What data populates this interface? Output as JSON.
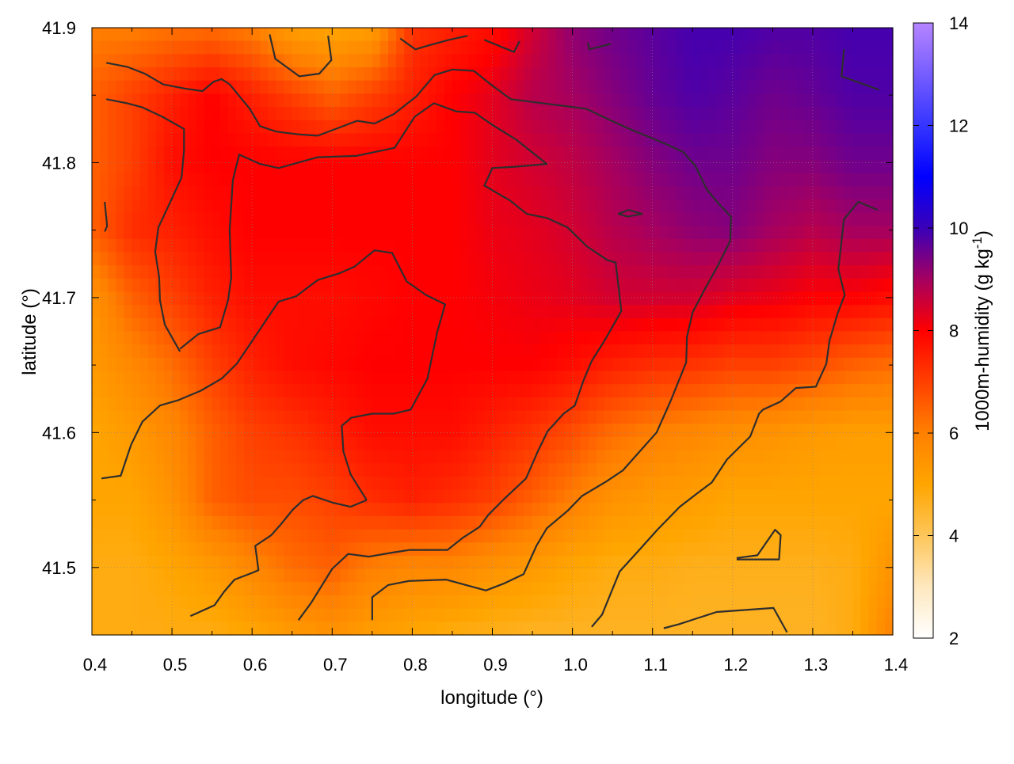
{
  "chart_data": {
    "type": "heatmap",
    "xlabel": "longitude (°)",
    "ylabel": "latitude (°)",
    "xlim": [
      0.4,
      1.4
    ],
    "ylim": [
      41.45,
      41.9
    ],
    "xticks": [
      "0.4",
      "0.5",
      "0.6",
      "0.7",
      "0.8",
      "0.9",
      "1.0",
      "1.1",
      "1.2",
      "1.3",
      "1.4"
    ],
    "yticks": [
      "41.5",
      "41.6",
      "41.7",
      "41.8",
      "41.9"
    ],
    "grid": true,
    "colorbar": {
      "label_main": "1000m-humidity (g kg",
      "label_sup": "-1",
      "label_end": ")",
      "range": [
        2,
        14
      ],
      "ticks": [
        "2",
        "4",
        "6",
        "8",
        "10",
        "12",
        "14"
      ],
      "palette": [
        {
          "v": 2,
          "c": "#ffffff"
        },
        {
          "v": 3,
          "c": "#fee8bf"
        },
        {
          "v": 4,
          "c": "#fdc65a"
        },
        {
          "v": 5,
          "c": "#ffa500"
        },
        {
          "v": 6,
          "c": "#ff8000"
        },
        {
          "v": 7,
          "c": "#ff4000"
        },
        {
          "v": 8,
          "c": "#ff0000"
        },
        {
          "v": 9,
          "c": "#a50060"
        },
        {
          "v": 10,
          "c": "#3a00b8"
        },
        {
          "v": 11,
          "c": "#0000ff"
        },
        {
          "v": 12,
          "c": "#3535ff"
        },
        {
          "v": 14,
          "c": "#b685ff"
        }
      ]
    },
    "grid_lon": [
      0.4,
      0.45,
      0.5,
      0.55,
      0.6,
      0.65,
      0.7,
      0.75,
      0.8,
      0.85,
      0.9,
      0.95,
      1.0,
      1.05,
      1.1,
      1.15,
      1.2,
      1.25,
      1.3,
      1.35,
      1.4
    ],
    "grid_lat": [
      41.9,
      41.85,
      41.8,
      41.75,
      41.7,
      41.65,
      41.6,
      41.55,
      41.5,
      41.45
    ],
    "values": [
      [
        6.0,
        6.0,
        6.2,
        6.3,
        6.0,
        5.2,
        5.0,
        5.2,
        7.2,
        7.5,
        7.8,
        8.5,
        9.2,
        9.5,
        9.7,
        9.9,
        9.9,
        9.8,
        9.8,
        9.9,
        9.9
      ],
      [
        6.5,
        7.0,
        7.5,
        8.0,
        7.5,
        7.0,
        6.5,
        7.0,
        7.5,
        8.0,
        8.3,
        8.8,
        9.0,
        9.3,
        9.6,
        9.8,
        9.7,
        9.5,
        9.6,
        9.8,
        9.8
      ],
      [
        6.5,
        7.0,
        7.8,
        8.0,
        8.0,
        8.0,
        8.0,
        8.0,
        8.0,
        8.0,
        8.3,
        8.5,
        8.7,
        9.0,
        9.3,
        9.5,
        9.5,
        9.3,
        9.3,
        9.5,
        9.5
      ],
      [
        6.5,
        7.3,
        7.5,
        7.8,
        8.0,
        8.0,
        8.0,
        8.0,
        8.0,
        8.0,
        8.2,
        8.3,
        8.5,
        8.8,
        9.0,
        9.2,
        9.3,
        9.0,
        8.8,
        9.0,
        9.0
      ],
      [
        5.5,
        6.5,
        7.0,
        7.5,
        7.8,
        7.8,
        7.8,
        7.9,
        8.0,
        8.0,
        8.1,
        8.2,
        8.3,
        8.5,
        8.5,
        8.5,
        8.3,
        8.2,
        8.0,
        8.0,
        7.8
      ],
      [
        5.3,
        5.8,
        6.3,
        7.0,
        7.5,
        7.8,
        7.9,
        8.0,
        8.0,
        8.0,
        8.0,
        8.0,
        7.8,
        7.5,
        7.3,
        7.2,
        7.0,
        7.0,
        6.8,
        6.5,
        6.3
      ],
      [
        5.0,
        5.3,
        5.8,
        6.5,
        7.0,
        7.2,
        7.5,
        7.8,
        7.8,
        7.8,
        7.5,
        7.2,
        6.8,
        6.3,
        6.0,
        5.8,
        5.6,
        5.5,
        5.3,
        5.2,
        5.2
      ],
      [
        5.0,
        5.0,
        5.5,
        6.5,
        6.8,
        6.8,
        7.0,
        7.3,
        7.5,
        7.3,
        7.0,
        6.5,
        6.0,
        5.5,
        5.3,
        5.2,
        5.0,
        5.0,
        5.0,
        5.0,
        5.0
      ],
      [
        4.8,
        4.8,
        5.0,
        5.3,
        5.8,
        6.3,
        6.5,
        6.0,
        5.8,
        5.8,
        5.5,
        5.3,
        5.0,
        4.8,
        4.8,
        4.7,
        4.7,
        4.7,
        4.7,
        4.8,
        5.5
      ],
      [
        4.8,
        4.8,
        4.8,
        4.8,
        5.0,
        5.3,
        5.5,
        5.2,
        5.0,
        4.8,
        4.7,
        4.6,
        4.6,
        4.6,
        4.6,
        4.6,
        4.6,
        4.6,
        4.6,
        4.8,
        6.0
      ]
    ],
    "contours": [
      [
        [
          0.743,
          41.55
        ],
        [
          0.723,
          41.569
        ],
        [
          0.714,
          41.586
        ],
        [
          0.712,
          41.605
        ],
        [
          0.724,
          41.611
        ],
        [
          0.75,
          41.614
        ],
        [
          0.777,
          41.614
        ],
        [
          0.798,
          41.617
        ],
        [
          0.819,
          41.64
        ],
        [
          0.831,
          41.674
        ],
        [
          0.841,
          41.695
        ],
        [
          0.817,
          41.702
        ],
        [
          0.793,
          41.712
        ],
        [
          0.775,
          41.733
        ],
        [
          0.753,
          41.735
        ],
        [
          0.728,
          41.723
        ],
        [
          0.709,
          41.718
        ],
        [
          0.682,
          41.713
        ],
        [
          0.655,
          41.701
        ],
        [
          0.633,
          41.697
        ],
        [
          0.607,
          41.674
        ],
        [
          0.581,
          41.651
        ],
        [
          0.562,
          41.64
        ],
        [
          0.536,
          41.631
        ],
        [
          0.508,
          41.624
        ],
        [
          0.485,
          41.62
        ],
        [
          0.463,
          41.608
        ],
        [
          0.449,
          41.591
        ],
        [
          0.436,
          41.568
        ],
        [
          0.412,
          41.566
        ]
      ],
      [
        [
          0.743,
          41.55
        ],
        [
          0.723,
          41.545
        ],
        [
          0.701,
          41.548
        ],
        [
          0.676,
          41.553
        ],
        [
          0.664,
          41.55
        ],
        [
          0.651,
          41.543
        ],
        [
          0.636,
          41.532
        ],
        [
          0.624,
          41.524
        ],
        [
          0.604,
          41.516
        ],
        [
          0.608,
          41.498
        ],
        [
          0.6,
          41.496
        ],
        [
          0.578,
          41.491
        ],
        [
          0.565,
          41.482
        ],
        [
          0.553,
          41.472
        ],
        [
          0.523,
          41.464
        ]
      ],
      [
        [
          0.51,
          41.662
        ],
        [
          0.533,
          41.673
        ],
        [
          0.56,
          41.678
        ],
        [
          0.57,
          41.698
        ],
        [
          0.574,
          41.715
        ],
        [
          0.572,
          41.75
        ],
        [
          0.576,
          41.787
        ],
        [
          0.584,
          41.806
        ],
        [
          0.61,
          41.799
        ],
        [
          0.633,
          41.796
        ],
        [
          0.682,
          41.804
        ],
        [
          0.73,
          41.805
        ],
        [
          0.778,
          41.811
        ],
        [
          0.803,
          41.834
        ],
        [
          0.827,
          41.844
        ],
        [
          0.855,
          41.838
        ],
        [
          0.878,
          41.837
        ],
        [
          0.9,
          41.828
        ],
        [
          0.93,
          41.817
        ],
        [
          0.968,
          41.799
        ],
        [
          0.928,
          41.797
        ],
        [
          0.9,
          41.796
        ],
        [
          0.89,
          41.783
        ],
        [
          0.922,
          41.772
        ],
        [
          0.943,
          41.762
        ],
        [
          0.968,
          41.759
        ],
        [
          0.994,
          41.752
        ],
        [
          1.018,
          41.738
        ],
        [
          1.043,
          41.728
        ],
        [
          1.054,
          41.726
        ],
        [
          1.061,
          41.69
        ],
        [
          1.04,
          41.668
        ],
        [
          1.024,
          41.653
        ],
        [
          1.014,
          41.639
        ],
        [
          1.003,
          41.62
        ],
        [
          0.989,
          41.614
        ],
        [
          0.969,
          41.601
        ],
        [
          0.956,
          41.585
        ],
        [
          0.942,
          41.566
        ],
        [
          0.915,
          41.551
        ],
        [
          0.895,
          41.539
        ],
        [
          0.884,
          41.53
        ],
        [
          0.863,
          41.522
        ],
        [
          0.844,
          41.513
        ],
        [
          0.797,
          41.513
        ],
        [
          0.775,
          41.511
        ],
        [
          0.746,
          41.508
        ],
        [
          0.72,
          41.51
        ],
        [
          0.7,
          41.499
        ],
        [
          0.674,
          41.474
        ],
        [
          0.658,
          41.461
        ]
      ],
      [
        [
          0.418,
          41.847
        ],
        [
          0.444,
          41.844
        ],
        [
          0.463,
          41.841
        ],
        [
          0.488,
          41.834
        ],
        [
          0.515,
          41.825
        ],
        [
          0.515,
          41.809
        ],
        [
          0.512,
          41.789
        ],
        [
          0.498,
          41.771
        ],
        [
          0.483,
          41.752
        ],
        [
          0.479,
          41.734
        ],
        [
          0.484,
          41.715
        ],
        [
          0.485,
          41.698
        ],
        [
          0.491,
          41.68
        ],
        [
          0.51,
          41.66
        ]
      ],
      [
        [
          0.418,
          41.874
        ],
        [
          0.444,
          41.871
        ],
        [
          0.466,
          41.866
        ],
        [
          0.489,
          41.858
        ],
        [
          0.515,
          41.855
        ],
        [
          0.538,
          41.853
        ],
        [
          0.552,
          41.86
        ],
        [
          0.562,
          41.862
        ],
        [
          0.572,
          41.858
        ],
        [
          0.597,
          41.84
        ],
        [
          0.61,
          41.827
        ],
        [
          0.63,
          41.823
        ],
        [
          0.658,
          41.821
        ],
        [
          0.682,
          41.82
        ],
        [
          0.709,
          41.826
        ],
        [
          0.731,
          41.831
        ],
        [
          0.753,
          41.829
        ],
        [
          0.777,
          41.836
        ],
        [
          0.805,
          41.849
        ],
        [
          0.828,
          41.865
        ],
        [
          0.85,
          41.869
        ],
        [
          0.877,
          41.868
        ],
        [
          0.898,
          41.858
        ],
        [
          0.923,
          41.847
        ],
        [
          1.017,
          41.84
        ],
        [
          1.049,
          41.831
        ],
        [
          1.075,
          41.824
        ],
        [
          1.096,
          41.819
        ],
        [
          1.116,
          41.814
        ],
        [
          1.138,
          41.808
        ],
        [
          1.153,
          41.798
        ],
        [
          1.168,
          41.78
        ],
        [
          1.182,
          41.77
        ],
        [
          1.198,
          41.76
        ],
        [
          1.197,
          41.742
        ],
        [
          1.181,
          41.723
        ],
        [
          1.165,
          41.706
        ],
        [
          1.15,
          41.689
        ],
        [
          1.143,
          41.671
        ],
        [
          1.142,
          41.652
        ],
        [
          1.123,
          41.624
        ],
        [
          1.105,
          41.6
        ],
        [
          1.078,
          41.582
        ],
        [
          1.063,
          41.572
        ],
        [
          1.043,
          41.564
        ],
        [
          1.012,
          41.553
        ],
        [
          0.994,
          41.542
        ],
        [
          0.968,
          41.529
        ],
        [
          0.955,
          41.516
        ],
        [
          0.939,
          41.495
        ],
        [
          0.914,
          41.488
        ],
        [
          0.892,
          41.483
        ],
        [
          0.842,
          41.491
        ],
        [
          0.796,
          41.49
        ],
        [
          0.77,
          41.487
        ],
        [
          0.75,
          41.478
        ],
        [
          0.75,
          41.461
        ]
      ],
      [
        [
          1.024,
          41.456
        ],
        [
          1.037,
          41.465
        ],
        [
          1.059,
          41.497
        ],
        [
          1.082,
          41.512
        ],
        [
          1.106,
          41.528
        ],
        [
          1.134,
          41.545
        ],
        [
          1.156,
          41.555
        ],
        [
          1.174,
          41.563
        ],
        [
          1.193,
          41.58
        ],
        [
          1.222,
          41.597
        ],
        [
          1.233,
          41.614
        ],
        [
          1.238,
          41.617
        ],
        [
          1.26,
          41.623
        ],
        [
          1.279,
          41.633
        ],
        [
          1.304,
          41.634
        ],
        [
          1.317,
          41.651
        ],
        [
          1.321,
          41.668
        ],
        [
          1.331,
          41.688
        ],
        [
          1.34,
          41.702
        ],
        [
          1.332,
          41.721
        ],
        [
          1.339,
          41.758
        ],
        [
          1.357,
          41.771
        ],
        [
          1.381,
          41.765
        ]
      ],
      [
        [
          1.114,
          41.455
        ],
        [
          1.133,
          41.458
        ],
        [
          1.154,
          41.462
        ],
        [
          1.18,
          41.467
        ],
        [
          1.251,
          41.47
        ],
        [
          1.268,
          41.452
        ]
      ],
      [
        [
          1.205,
          41.507
        ],
        [
          1.231,
          41.509
        ],
        [
          1.253,
          41.528
        ],
        [
          1.26,
          41.524
        ],
        [
          1.258,
          41.506
        ],
        [
          1.205,
          41.506
        ]
      ],
      [
        [
          0.622,
          41.895
        ],
        [
          0.629,
          41.877
        ],
        [
          0.659,
          41.864
        ],
        [
          0.684,
          41.866
        ],
        [
          0.699,
          41.876
        ],
        [
          0.695,
          41.894
        ]
      ],
      [
        [
          0.785,
          41.892
        ],
        [
          0.804,
          41.884
        ],
        [
          0.821,
          41.887
        ],
        [
          0.846,
          41.891
        ],
        [
          0.869,
          41.894
        ]
      ],
      [
        [
          0.89,
          41.891
        ],
        [
          0.927,
          41.882
        ],
        [
          0.934,
          41.89
        ]
      ],
      [
        [
          1.019,
          41.889
        ],
        [
          1.021,
          41.884
        ],
        [
          1.048,
          41.888
        ]
      ],
      [
        [
          1.339,
          41.884
        ],
        [
          1.336,
          41.864
        ],
        [
          1.383,
          41.854
        ]
      ],
      [
        [
          1.057,
          41.762
        ],
        [
          1.07,
          41.765
        ],
        [
          1.087,
          41.762
        ],
        [
          1.069,
          41.76
        ],
        [
          1.057,
          41.762
        ]
      ],
      [
        [
          0.416,
          41.771
        ],
        [
          0.419,
          41.753
        ],
        [
          0.416,
          41.749
        ]
      ]
    ]
  }
}
